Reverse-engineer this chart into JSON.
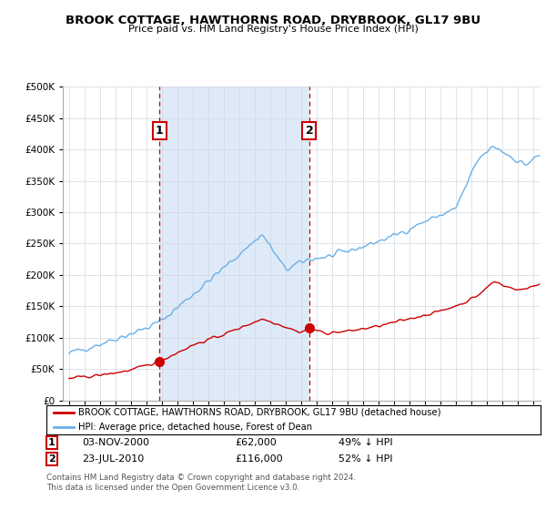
{
  "title": "BROOK COTTAGE, HAWTHORNS ROAD, DRYBROOK, GL17 9BU",
  "subtitle": "Price paid vs. HM Land Registry's House Price Index (HPI)",
  "legend_entry1": "BROOK COTTAGE, HAWTHORNS ROAD, DRYBROOK, GL17 9BU (detached house)",
  "legend_entry2": "HPI: Average price, detached house, Forest of Dean",
  "transaction1_date": "03-NOV-2000",
  "transaction1_price": 62000,
  "transaction1_hpi": "49% ↓ HPI",
  "transaction2_date": "23-JUL-2010",
  "transaction2_price": 116000,
  "transaction2_hpi": "52% ↓ HPI",
  "footer": "Contains HM Land Registry data © Crown copyright and database right 2024.\nThis data is licensed under the Open Government Licence v3.0.",
  "hpi_color": "#6ab0e8",
  "hpi_fill_color": "#deeaf7",
  "price_color": "#cc0000",
  "marker_color": "#cc0000",
  "dashed_line_color": "#cc0000",
  "ylim_max": 500000,
  "ylim_min": 0,
  "transaction1_x": 2000.84,
  "transaction2_x": 2010.55,
  "seed": 42
}
